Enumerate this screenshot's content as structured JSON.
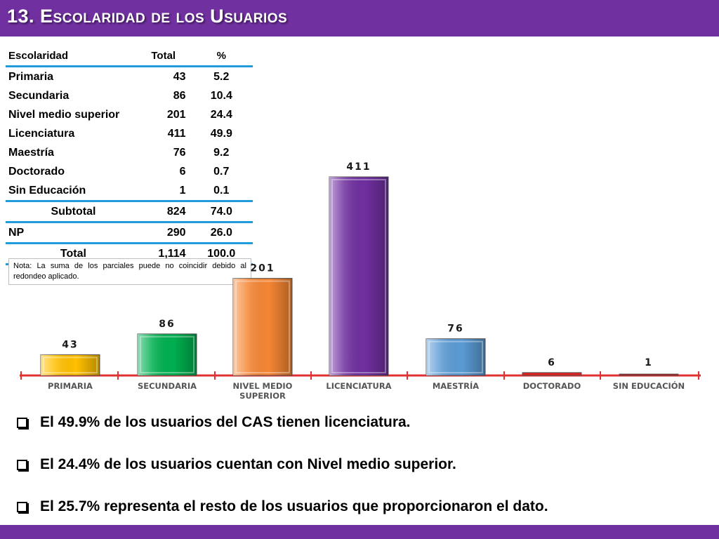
{
  "title": "13. Escolaridad de los Usuarios",
  "table": {
    "headers": [
      "Escolaridad",
      "Total",
      "%"
    ],
    "rows": [
      {
        "label": "Primaria",
        "total": "43",
        "pct": "5.2"
      },
      {
        "label": "Secundaria",
        "total": "86",
        "pct": "10.4"
      },
      {
        "label": "Nivel medio superior",
        "total": "201",
        "pct": "24.4"
      },
      {
        "label": "Licenciatura",
        "total": "411",
        "pct": "49.9"
      },
      {
        "label": "Maestría",
        "total": "76",
        "pct": "9.2"
      },
      {
        "label": "Doctorado",
        "total": "6",
        "pct": "0.7"
      },
      {
        "label": "Sin Educación",
        "total": "1",
        "pct": "0.1"
      }
    ],
    "subtotal": {
      "label": "Subtotal",
      "total": "824",
      "pct": "74.0"
    },
    "np": {
      "label": "NP",
      "total": "290",
      "pct": "26.0"
    },
    "total": {
      "label": "Total",
      "total": "1,114",
      "pct": "100.0"
    }
  },
  "note": "Nota: La suma de los parciales puede no coincidir debido al redondeo aplicado.",
  "chart_data": {
    "type": "bar",
    "title": "",
    "xlabel": "",
    "ylabel": "",
    "categories": [
      "PRIMARIA",
      "SECUNDARIA",
      "NIVEL MEDIO SUPERIOR",
      "LICENCIATURA",
      "MAESTRÍA",
      "DOCTORADO",
      "SIN EDUCACIÓN"
    ],
    "category_lines": [
      [
        "PRIMARIA"
      ],
      [
        "SECUNDARIA"
      ],
      [
        "NIVEL MEDIO",
        "SUPERIOR"
      ],
      [
        "LICENCIATURA"
      ],
      [
        "MAESTRÍA"
      ],
      [
        "DOCTORADO"
      ],
      [
        "SIN EDUCACIÓN"
      ]
    ],
    "values": [
      43,
      86,
      201,
      411,
      76,
      6,
      1
    ],
    "colors": [
      "#ffc000",
      "#00b050",
      "#f58634",
      "#7030a0",
      "#5b9bd5",
      "#e02020",
      "#c00000"
    ],
    "ylim": [
      0,
      411
    ],
    "grid": false,
    "axis_color": "#e03030"
  },
  "bullets": [
    "El 49.9% de los usuarios del CAS tienen licenciatura.",
    "El 24.4% de los usuarios cuentan con Nivel medio superior.",
    "El  25.7% representa el resto de los usuarios que proporcionaron el dato."
  ],
  "icons": {
    "bullet": "checkbox-bullet-icon"
  },
  "colors": {
    "header": "#7030a0",
    "table_rule": "#1f9bde"
  }
}
